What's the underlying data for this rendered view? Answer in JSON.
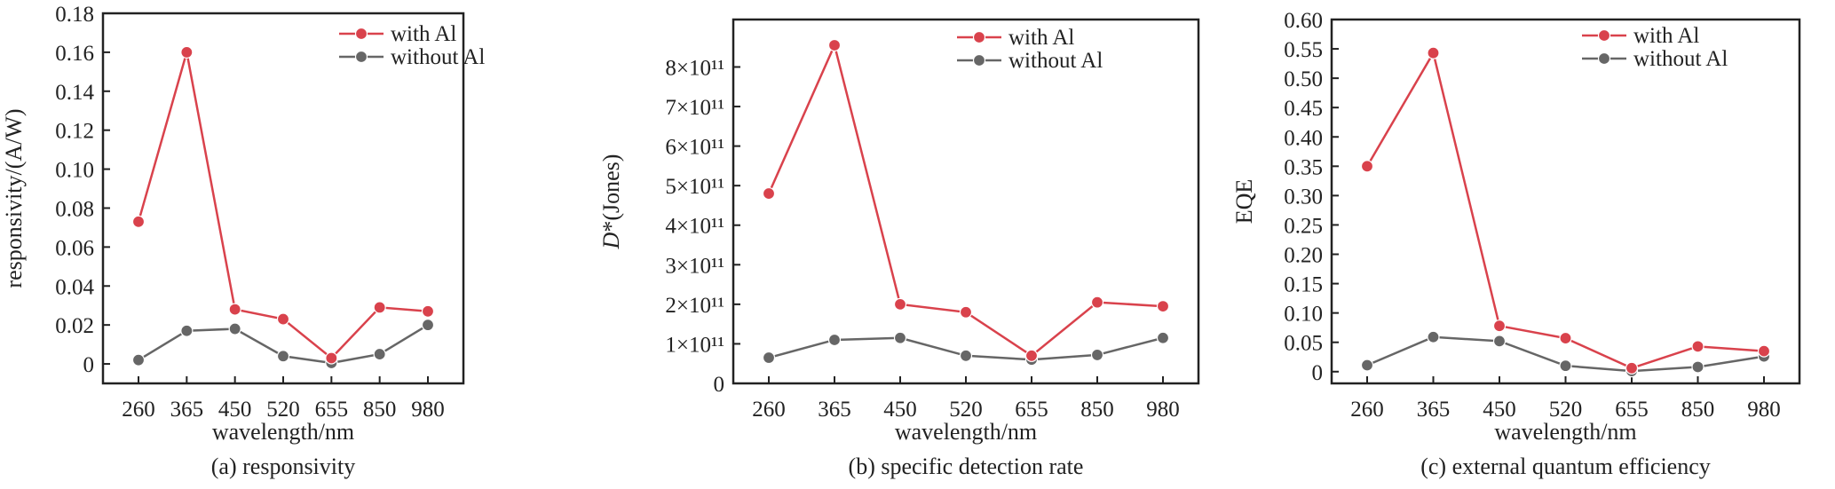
{
  "figure": {
    "series_colors": {
      "with Al": "#d9424c",
      "without Al": "#666666"
    }
  },
  "chart_data": [
    {
      "type": "line",
      "panel_caption": "(a) responsivity",
      "xlabel": "wavelength/nm",
      "ylabel": "responsivity/(A/W)",
      "categories": [
        "260",
        "365",
        "450",
        "520",
        "655",
        "850",
        "980"
      ],
      "ylim": [
        -0.01,
        0.18
      ],
      "yticks": [
        {
          "value": 0,
          "label": "0"
        },
        {
          "value": 0.02,
          "label": "0.02"
        },
        {
          "value": 0.04,
          "label": "0.04"
        },
        {
          "value": 0.06,
          "label": "0.06"
        },
        {
          "value": 0.08,
          "label": "0.08"
        },
        {
          "value": 0.1,
          "label": "0.10"
        },
        {
          "value": 0.12,
          "label": "0.12"
        },
        {
          "value": 0.14,
          "label": "0.14"
        },
        {
          "value": 0.16,
          "label": "0.16"
        },
        {
          "value": 0.18,
          "label": "0.18"
        }
      ],
      "legend": "top-right",
      "grid": false,
      "series": [
        {
          "name": "with Al",
          "values": [
            0.073,
            0.16,
            0.028,
            0.023,
            0.003,
            0.029,
            0.027
          ]
        },
        {
          "name": "without Al",
          "values": [
            0.002,
            0.017,
            0.018,
            0.004,
            0.0005,
            0.005,
            0.02
          ]
        }
      ]
    },
    {
      "type": "line",
      "panel_caption": "(b) specific detection rate",
      "xlabel": "wavelength/nm",
      "ylabel": "D*(Jones)",
      "categories": [
        "260",
        "365",
        "450",
        "520",
        "655",
        "850",
        "980"
      ],
      "ylim": [
        0,
        920000000000.0
      ],
      "yticks": [
        {
          "value": 0,
          "label": "0"
        },
        {
          "value": 100000000000.0,
          "label": "1×10¹¹"
        },
        {
          "value": 200000000000.0,
          "label": "2×10¹¹"
        },
        {
          "value": 300000000000.0,
          "label": "3×10¹¹"
        },
        {
          "value": 400000000000.0,
          "label": "4×10¹¹"
        },
        {
          "value": 500000000000.0,
          "label": "5×10¹¹"
        },
        {
          "value": 600000000000.0,
          "label": "6×10¹¹"
        },
        {
          "value": 700000000000.0,
          "label": "7×10¹¹"
        },
        {
          "value": 800000000000.0,
          "label": "8×10¹¹"
        }
      ],
      "legend": "top-right",
      "grid": false,
      "series": [
        {
          "name": "with Al",
          "values": [
            480000000000.0,
            855000000000.0,
            200000000000.0,
            180000000000.0,
            70000000000.0,
            205000000000.0,
            195000000000.0
          ]
        },
        {
          "name": "without Al",
          "values": [
            65000000000.0,
            110000000000.0,
            115000000000.0,
            70000000000.0,
            60000000000.0,
            72000000000.0,
            115000000000.0
          ]
        }
      ]
    },
    {
      "type": "line",
      "panel_caption": "(c) external quantum efficiency",
      "xlabel": "wavelength/nm",
      "ylabel": "EQE",
      "categories": [
        "260",
        "365",
        "450",
        "520",
        "655",
        "850",
        "980"
      ],
      "ylim": [
        -0.02,
        0.6
      ],
      "yticks": [
        {
          "value": 0,
          "label": "0"
        },
        {
          "value": 0.05,
          "label": "0.05"
        },
        {
          "value": 0.1,
          "label": "0.10"
        },
        {
          "value": 0.15,
          "label": "0.15"
        },
        {
          "value": 0.2,
          "label": "0.20"
        },
        {
          "value": 0.25,
          "label": "0.25"
        },
        {
          "value": 0.3,
          "label": "0.30"
        },
        {
          "value": 0.35,
          "label": "0.35"
        },
        {
          "value": 0.4,
          "label": "0.40"
        },
        {
          "value": 0.45,
          "label": "0.45"
        },
        {
          "value": 0.5,
          "label": "0.50"
        },
        {
          "value": 0.55,
          "label": "0.55"
        },
        {
          "value": 0.6,
          "label": "0.60"
        }
      ],
      "legend": "top-right",
      "grid": false,
      "series": [
        {
          "name": "with Al",
          "values": [
            0.35,
            0.543,
            0.078,
            0.057,
            0.006,
            0.043,
            0.035
          ]
        },
        {
          "name": "without Al",
          "values": [
            0.011,
            0.059,
            0.052,
            0.01,
            0.001,
            0.008,
            0.026
          ]
        }
      ]
    }
  ]
}
